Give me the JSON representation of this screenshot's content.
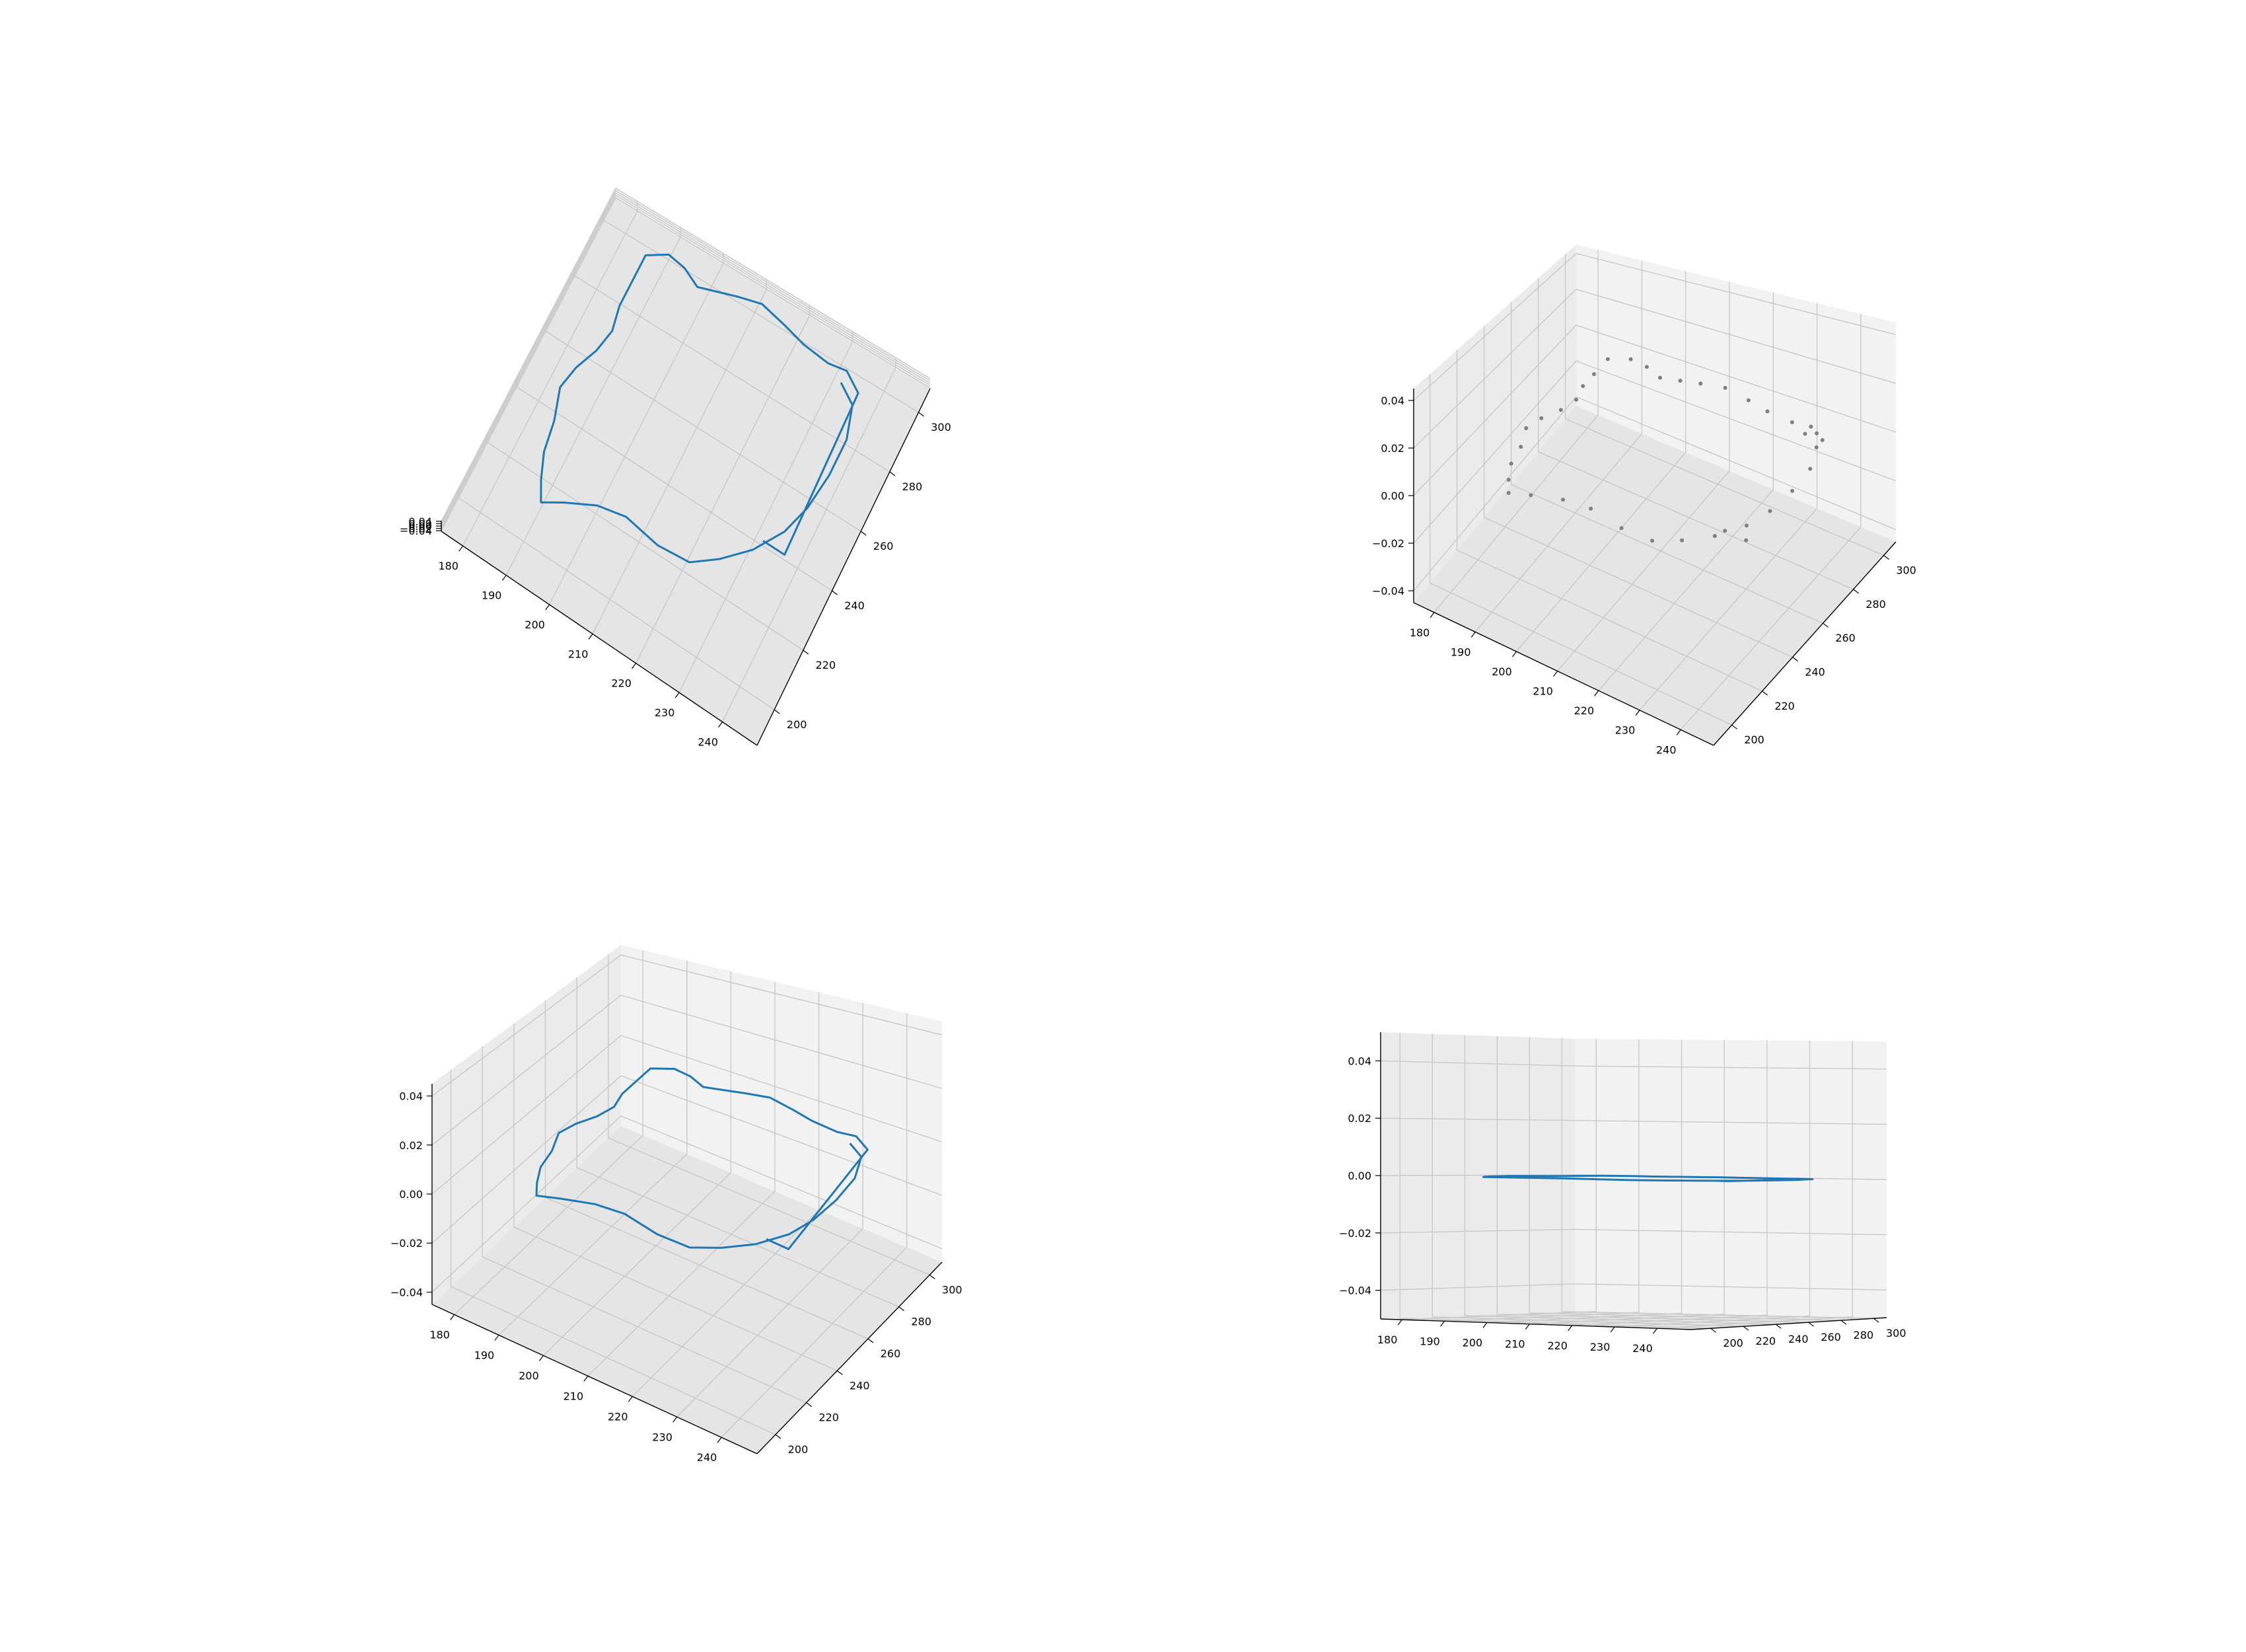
{
  "figure": {
    "background": "#ffffff",
    "pane_colors": [
      "#f2f2f2",
      "#ebebeb",
      "#e5e5e5"
    ],
    "grid_color": "#c8c8c8",
    "line_color": "#1f77b4",
    "point_color": "#7f7f7f"
  },
  "chart_data": [
    {
      "type": "line",
      "projection": "3d",
      "view": "elevated, looking down",
      "title": "",
      "xlabel": "",
      "ylabel": "",
      "zlabel": "",
      "xlim": [
        175,
        248
      ],
      "ylim": [
        188,
        308
      ],
      "zlim": [
        -0.045,
        0.045
      ],
      "x_ticks": [
        "240",
        "230",
        "220",
        "210",
        "200",
        "190",
        "180"
      ],
      "y_ticks": [
        "200",
        "220",
        "240",
        "260",
        "280",
        "300"
      ],
      "z_ticks": [
        "0.04",
        "0.02",
        "0.00",
        "−0.02",
        "−0.04"
      ],
      "grid": true,
      "series": [
        {
          "color": "#1f77b4",
          "description_ref": "trajectory",
          "z": 0.0
        }
      ]
    },
    {
      "type": "scatter",
      "projection": "3d",
      "view": "default perspective",
      "title": "",
      "xlabel": "",
      "ylabel": "",
      "zlabel": "",
      "xlim": [
        175,
        248
      ],
      "ylim": [
        188,
        308
      ],
      "zlim": [
        -0.045,
        0.045
      ],
      "x_ticks": [
        "240",
        "230",
        "220",
        "210",
        "200",
        "190",
        "180"
      ],
      "y_ticks": [
        "200",
        "220",
        "240",
        "260",
        "280",
        "300"
      ],
      "z_ticks": [
        "0.04",
        "0.02",
        "0.00",
        "−0.02",
        "−0.04"
      ],
      "grid": true,
      "series": [
        {
          "color": "#7f7f7f",
          "description_ref": "trajectory",
          "z": 0.0
        }
      ]
    },
    {
      "type": "line",
      "projection": "3d",
      "view": "default perspective",
      "title": "",
      "xlabel": "",
      "ylabel": "",
      "zlabel": "",
      "xlim": [
        175,
        248
      ],
      "ylim": [
        188,
        308
      ],
      "zlim": [
        -0.045,
        0.045
      ],
      "x_ticks": [
        "240",
        "230",
        "220",
        "210",
        "200",
        "190",
        "180"
      ],
      "y_ticks": [
        "200",
        "220",
        "240",
        "260",
        "280",
        "300"
      ],
      "z_ticks": [
        "0.04",
        "0.02",
        "0.00",
        "−0.02",
        "−0.04"
      ],
      "grid": true,
      "series": [
        {
          "color": "#1f77b4",
          "description_ref": "trajectory",
          "z": 0.0
        }
      ]
    },
    {
      "type": "line",
      "projection": "3d",
      "view": "side view, elevation 0",
      "title": "",
      "xlabel": "",
      "ylabel": "",
      "zlabel": "",
      "xlim": [
        175,
        248
      ],
      "ylim": [
        188,
        308
      ],
      "zlim": [
        -0.05,
        0.05
      ],
      "x_ticks": [
        "240",
        "230",
        "220",
        "210",
        "200",
        "190",
        "180"
      ],
      "y_ticks": [
        "200",
        "220",
        "240",
        "260",
        "280",
        "300"
      ],
      "z_ticks": [
        "0.04",
        "0.02",
        "0.00",
        "−0.02",
        "−0.04"
      ],
      "grid": true,
      "series": [
        {
          "color": "#1f77b4",
          "description_ref": "trajectory",
          "z": 0.0
        }
      ]
    }
  ],
  "trajectory": {
    "x": [
      232,
      236,
      238,
      238,
      237,
      235,
      231,
      226,
      221,
      214,
      206,
      200,
      194,
      190,
      188,
      186,
      185,
      183,
      184,
      186,
      187,
      186,
      186,
      186,
      190,
      194,
      198,
      202,
      206,
      211,
      217,
      222,
      228,
      232,
      234,
      236,
      237,
      232
    ],
    "y": [
      294,
      290,
      280,
      268,
      256,
      246,
      236,
      228,
      222,
      221,
      223,
      221,
      216,
      212,
      218,
      226,
      236,
      246,
      254,
      262,
      270,
      278,
      286,
      296,
      300,
      299,
      296,
      298,
      300,
      302,
      300,
      298,
      297,
      298,
      296,
      294,
      240,
      240
    ]
  }
}
